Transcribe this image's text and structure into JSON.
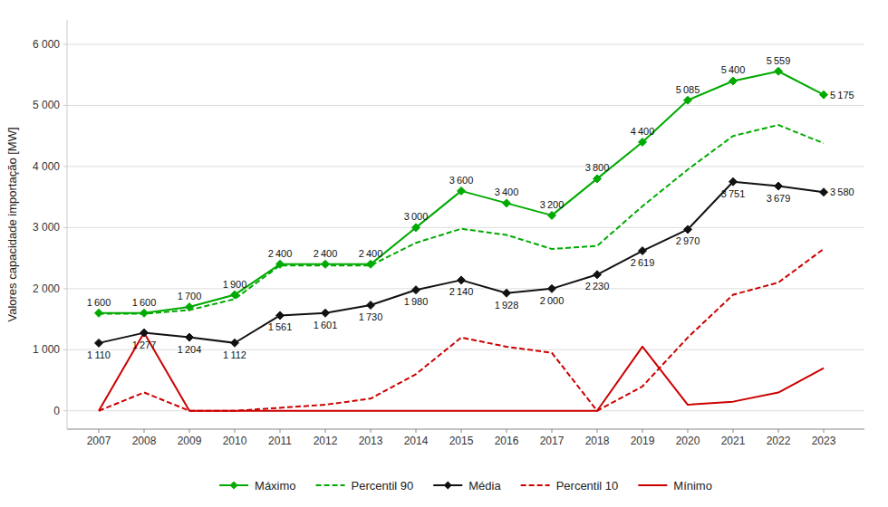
{
  "chart_data": {
    "type": "line",
    "x": [
      2007,
      2008,
      2009,
      2010,
      2011,
      2012,
      2013,
      2014,
      2015,
      2016,
      2017,
      2018,
      2019,
      2020,
      2021,
      2022,
      2023
    ],
    "xlim": [
      2006.3,
      2023.9
    ],
    "xticks": [
      2007,
      2008,
      2009,
      2010,
      2011,
      2012,
      2013,
      2014,
      2015,
      2016,
      2017,
      2018,
      2019,
      2020,
      2021,
      2022,
      2023
    ],
    "ylim": [
      -300,
      6400
    ],
    "yticks": [
      0,
      {
        "value": 1000,
        "label": "1 000"
      },
      {
        "value": 2000,
        "label": "2 000"
      },
      {
        "value": 3000,
        "label": "3 000"
      },
      {
        "value": 4000,
        "label": "4 000"
      },
      {
        "value": 5000,
        "label": "5 000"
      },
      {
        "value": 6000,
        "label": "6 000"
      }
    ],
    "ylabel": "Valores capacidade importação [MW]",
    "grid": "y",
    "legend": "bottom",
    "series": [
      {
        "name": "Máximo",
        "color": "#00aa00",
        "line_style": "solid",
        "marker": "diamond",
        "data_labels": true,
        "values": [
          1600,
          1600,
          1700,
          1900,
          2400,
          2400,
          2400,
          3000,
          3600,
          3400,
          3200,
          3800,
          4400,
          5085,
          5400,
          5559,
          5175
        ],
        "value_labels": [
          "1 600",
          "1 600",
          "1 700",
          "1 900",
          "2 400",
          "2 400",
          "2 400",
          "3 000",
          "3 600",
          "3 400",
          "3 200",
          "3 800",
          "4 400",
          "5 085",
          "5 400",
          "5 559",
          "5 175"
        ]
      },
      {
        "name": "Percentil 90",
        "color": "#00aa00",
        "line_style": "dashed",
        "values": [
          1590,
          1590,
          1650,
          1830,
          2380,
          2380,
          2380,
          2750,
          2980,
          2880,
          2650,
          2700,
          3350,
          3950,
          4500,
          4680,
          4380
        ]
      },
      {
        "name": "Média",
        "color": "#111111",
        "line_style": "solid",
        "marker": "diamond",
        "data_labels": true,
        "values": [
          1110,
          1277,
          1204,
          1112,
          1561,
          1601,
          1730,
          1980,
          2140,
          1928,
          2000,
          2230,
          2619,
          2970,
          3751,
          3679,
          3580
        ],
        "value_labels": [
          "1 110",
          "1 277",
          "1 204",
          "1 112",
          "1 561",
          "1 601",
          "1 730",
          "1 980",
          "2 140",
          "1 928",
          "2 000",
          "2 230",
          "2 619",
          "2 970",
          "3 751",
          "3 679",
          "3 580"
        ]
      },
      {
        "name": "Percentil 10",
        "color": "#cc0000",
        "line_style": "dashed",
        "values": [
          0,
          300,
          0,
          0,
          50,
          100,
          200,
          600,
          1200,
          1050,
          950,
          0,
          400,
          1200,
          1900,
          2100,
          2650
        ]
      },
      {
        "name": "Mínimo",
        "color": "#cc0000",
        "line_style": "solid",
        "values": [
          0,
          1277,
          0,
          0,
          0,
          0,
          0,
          0,
          0,
          0,
          0,
          0,
          1050,
          100,
          150,
          300,
          700
        ]
      }
    ]
  }
}
